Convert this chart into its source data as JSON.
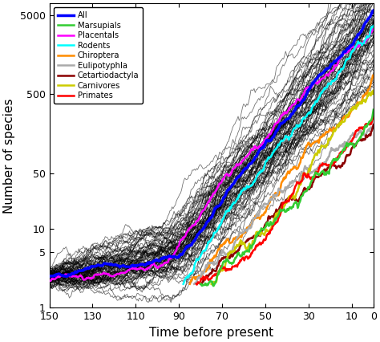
{
  "title": "",
  "xlabel": "Time before present",
  "ylabel": "Number of species",
  "xlim": [
    150,
    0
  ],
  "ylim_log": [
    1,
    7000
  ],
  "yticks": [
    1,
    5,
    10,
    50,
    500,
    5000
  ],
  "ytick_labels": [
    "1",
    "5",
    "10",
    "50",
    "500",
    "5000"
  ],
  "xticks": [
    150,
    130,
    110,
    90,
    70,
    50,
    30,
    10,
    0
  ],
  "colors": {
    "All": "#0000ff",
    "Marsupials": "#33cc33",
    "Placentals": "#ff00ff",
    "Rodents": "#00ffff",
    "Chiroptera": "#ff8c00",
    "Eulipotyphla": "#aaaaaa",
    "Cetartiodactyla": "#8b0000",
    "Carnivores": "#cccc00",
    "Primates": "#ff0000"
  },
  "background_color": "#ffffff",
  "num_black_lines": 80,
  "black_line_alpha": 0.55,
  "black_line_lw": 0.6,
  "colored_line_lw": 1.8,
  "all_line_lw": 2.5
}
